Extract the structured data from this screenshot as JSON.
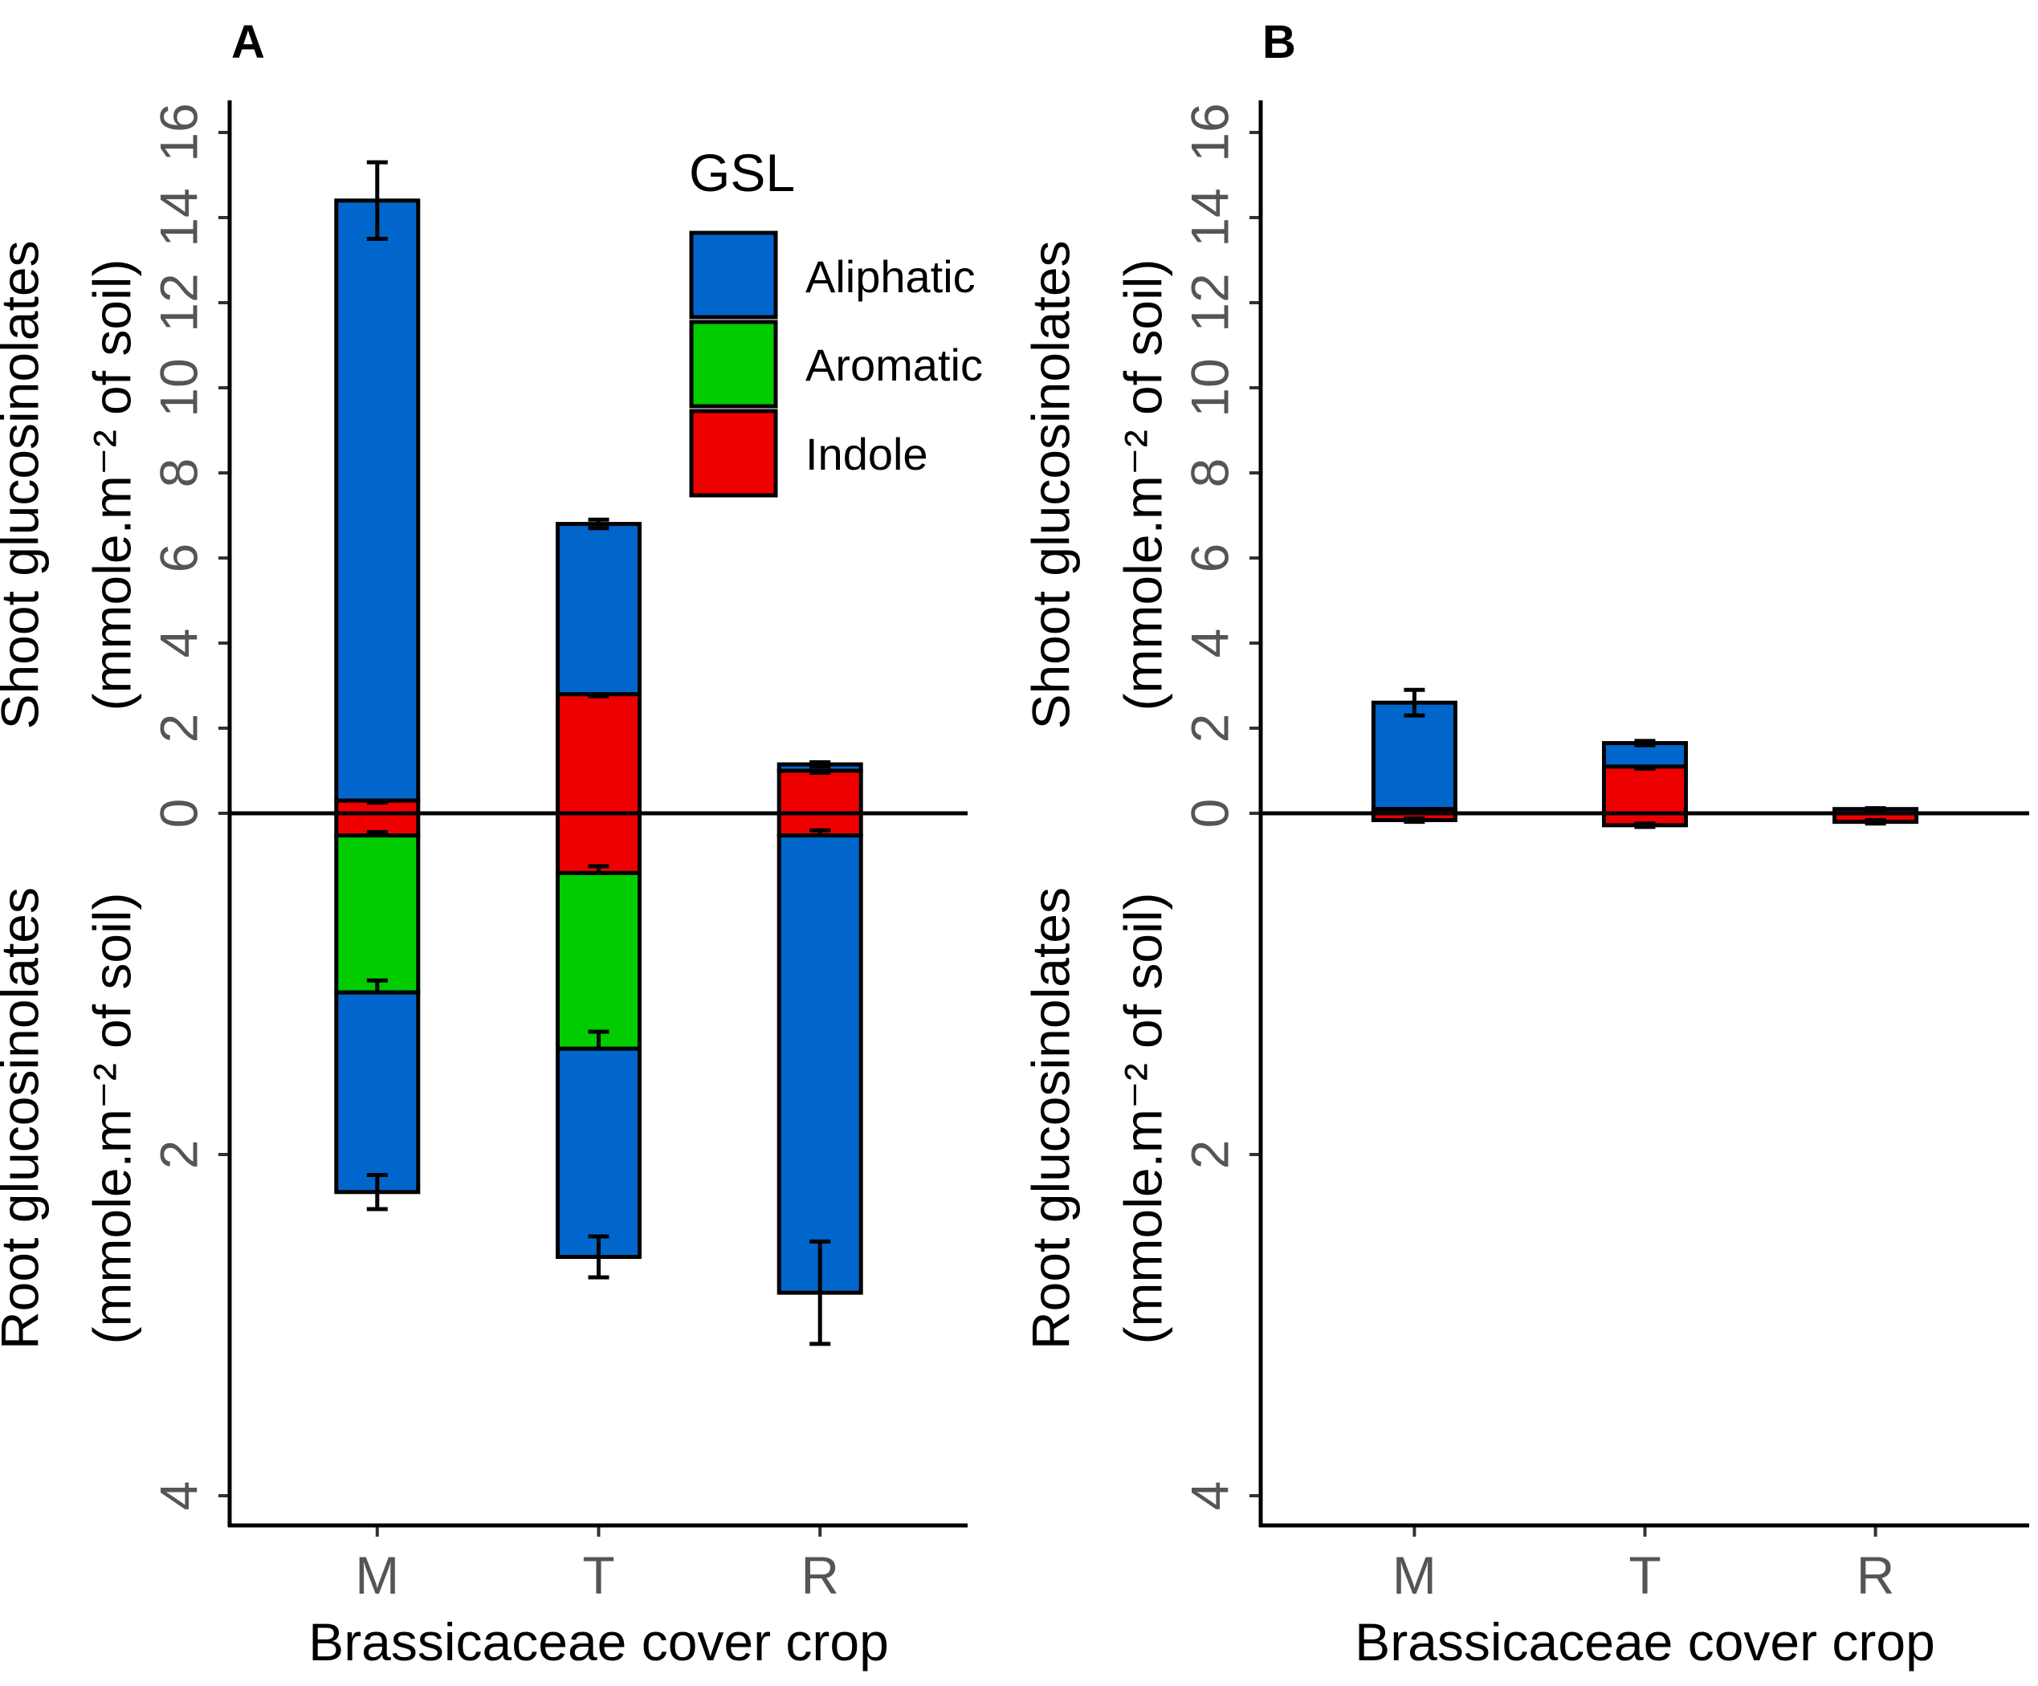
{
  "chart_data": {
    "type": "bar",
    "subtype": "mirrored stacked bar",
    "colors": {
      "Aliphatic": "#0066cc",
      "Aromatic": "#00cc00",
      "Indole": "#ee0000"
    },
    "legend": {
      "title": "GSL",
      "entries": [
        "Aliphatic",
        "Aromatic",
        "Indole"
      ]
    },
    "panels": [
      {
        "id": "A",
        "label": "A",
        "categories": [
          "M",
          "T",
          "R"
        ],
        "xlabel": "Brassicaceae cover crop",
        "ylabel_top": [
          "Shoot glucosinolates",
          "(mmole.m⁻² of soil)"
        ],
        "ylabel_bottom": [
          "Root glucosinolates",
          "(mmole.m⁻² of soil)"
        ],
        "shoot_ylim": [
          0,
          16
        ],
        "shoot_ticks": [
          "0",
          "2",
          "4",
          "6",
          "8",
          "10",
          "12",
          "14",
          "16"
        ],
        "root_ylim": [
          0,
          4
        ],
        "root_ticks": [
          "2",
          "4"
        ],
        "shoot": {
          "series": [
            {
              "name": "Indole",
              "values": [
                0.3,
                2.8,
                1.0
              ],
              "cum_error": [
                0.05,
                0.05,
                0.05
              ]
            },
            {
              "name": "Aromatic",
              "values": [
                0,
                0,
                0
              ],
              "cum_error": [
                0,
                0,
                0
              ]
            },
            {
              "name": "Aliphatic",
              "values": [
                14.1,
                4.0,
                0.15
              ],
              "cum_error": [
                0.9,
                0.1,
                0.05
              ]
            }
          ]
        },
        "root": {
          "series": [
            {
              "name": "Indole",
              "values": [
                0.13,
                0.35,
                0.13
              ],
              "cum_error": [
                0.02,
                0.04,
                0.03
              ]
            },
            {
              "name": "Aromatic",
              "values": [
                0.92,
                1.03,
                0
              ],
              "cum_error": [
                0.07,
                0.1,
                0
              ]
            },
            {
              "name": "Aliphatic",
              "values": [
                1.17,
                1.22,
                2.68
              ],
              "cum_error": [
                0.1,
                0.12,
                0.3
              ]
            }
          ]
        }
      },
      {
        "id": "B",
        "label": "B",
        "categories": [
          "M",
          "T",
          "R"
        ],
        "xlabel": "Brassicaceae cover crop",
        "ylabel_top": [
          "Shoot glucosinolates",
          "(mmole.m⁻² of soil)"
        ],
        "ylabel_bottom": [
          "Root glucosinolates",
          "(mmole.m⁻² of soil)"
        ],
        "shoot_ylim": [
          0,
          16
        ],
        "shoot_ticks": [
          "0",
          "2",
          "4",
          "6",
          "8",
          "10",
          "12",
          "14",
          "16"
        ],
        "root_ylim": [
          0,
          4
        ],
        "root_ticks": [
          "2",
          "4"
        ],
        "shoot": {
          "series": [
            {
              "name": "Indole",
              "values": [
                0.1,
                1.1,
                0
              ],
              "cum_error": [
                0.02,
                0.05,
                0
              ]
            },
            {
              "name": "Aromatic",
              "values": [
                0,
                0,
                0
              ],
              "cum_error": [
                0,
                0,
                0
              ]
            },
            {
              "name": "Aliphatic",
              "values": [
                2.5,
                0.55,
                0.1
              ],
              "cum_error": [
                0.3,
                0.05,
                0.02
              ]
            }
          ]
        },
        "root": {
          "series": [
            {
              "name": "Indole",
              "values": [
                0.04,
                0.07,
                0.05
              ],
              "cum_error": [
                0.01,
                0.01,
                0.01
              ]
            },
            {
              "name": "Aromatic",
              "values": [
                0,
                0,
                0
              ],
              "cum_error": [
                0,
                0,
                0
              ]
            },
            {
              "name": "Aliphatic",
              "values": [
                0,
                0,
                0
              ],
              "cum_error": [
                0,
                0,
                0
              ]
            }
          ]
        }
      }
    ]
  }
}
